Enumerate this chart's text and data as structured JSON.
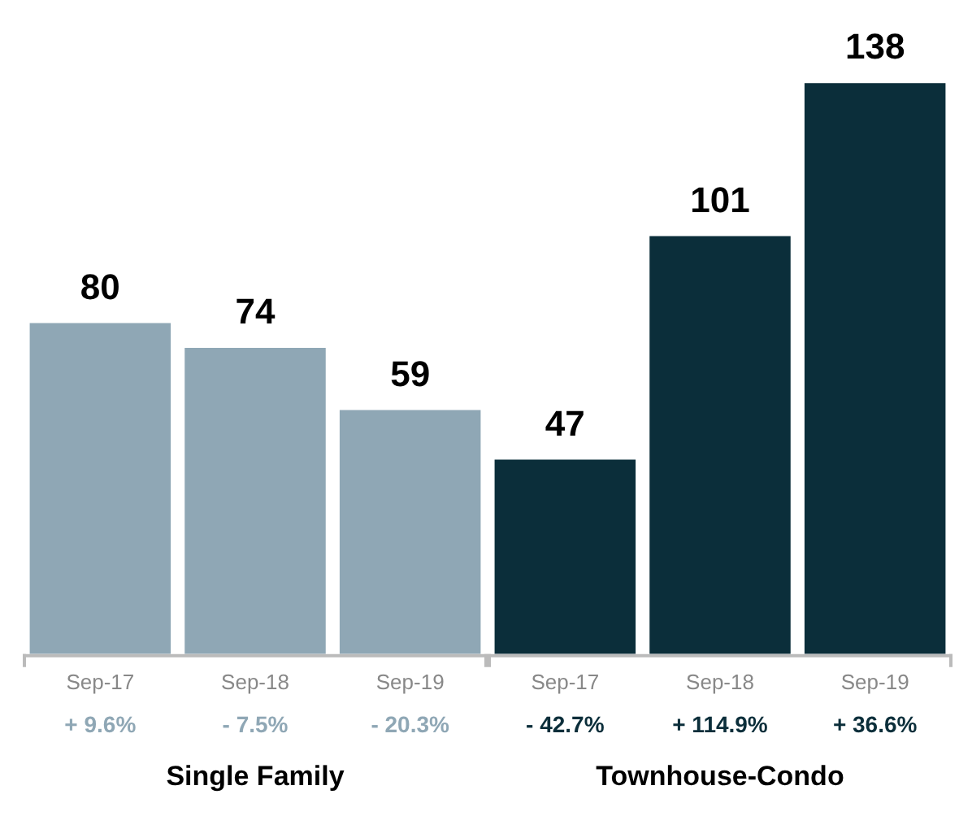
{
  "chart_data": {
    "type": "bar",
    "stacked": true,
    "categories": [
      "Sep-17",
      "Sep-18",
      "Sep-19",
      "Sep-17",
      "Sep-18",
      "Sep-19"
    ],
    "series": [
      {
        "color": "#8fa7b5",
        "values": [
          80,
          74,
          59,
          null,
          null,
          null
        ]
      },
      {
        "color": "#0b2e3a",
        "values": [
          null,
          null,
          null,
          47,
          101,
          138
        ]
      }
    ],
    "data_labels": true,
    "grid": false,
    "legend": false,
    "annotations": [
      "+ 9.6%",
      "- 7.5%",
      "- 20.3%",
      "- 42.7%",
      "+ 114.9%",
      "+ 36.6%",
      "Single Family",
      "Townhouse-Condo"
    ]
  }
}
